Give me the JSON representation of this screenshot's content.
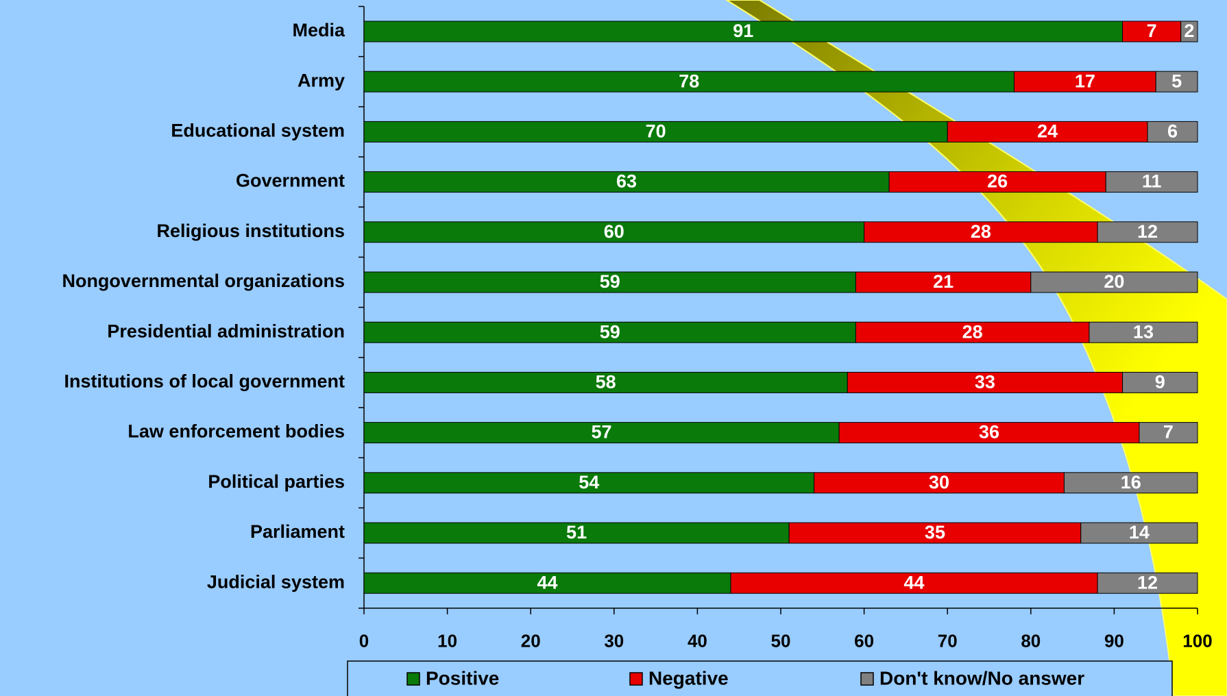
{
  "chart_data": {
    "type": "bar",
    "orientation": "horizontal",
    "stacked": true,
    "categories": [
      "Media",
      "Army",
      "Educational system",
      "Government",
      "Religious institutions",
      "Nongovernmental organizations",
      "Presidential administration",
      "Institutions of local government",
      "Law enforcement bodies",
      "Political parties",
      "Parliament",
      "Judicial system"
    ],
    "series": [
      {
        "name": "Positive",
        "color": "#0a7a0a",
        "values": [
          91,
          78,
          70,
          63,
          60,
          59,
          59,
          58,
          57,
          54,
          51,
          44
        ]
      },
      {
        "name": "Negative",
        "color": "#e80000",
        "values": [
          7,
          17,
          24,
          26,
          28,
          21,
          28,
          33,
          36,
          30,
          35,
          44
        ]
      },
      {
        "name": "Don't know/No answer",
        "color": "#808080",
        "values": [
          2,
          5,
          6,
          11,
          12,
          20,
          13,
          9,
          7,
          16,
          14,
          12
        ]
      }
    ],
    "xlim": [
      0,
      100
    ],
    "xticks": [
      0,
      10,
      20,
      30,
      40,
      50,
      60,
      70,
      80,
      90,
      100
    ],
    "legend": "bottom"
  }
}
